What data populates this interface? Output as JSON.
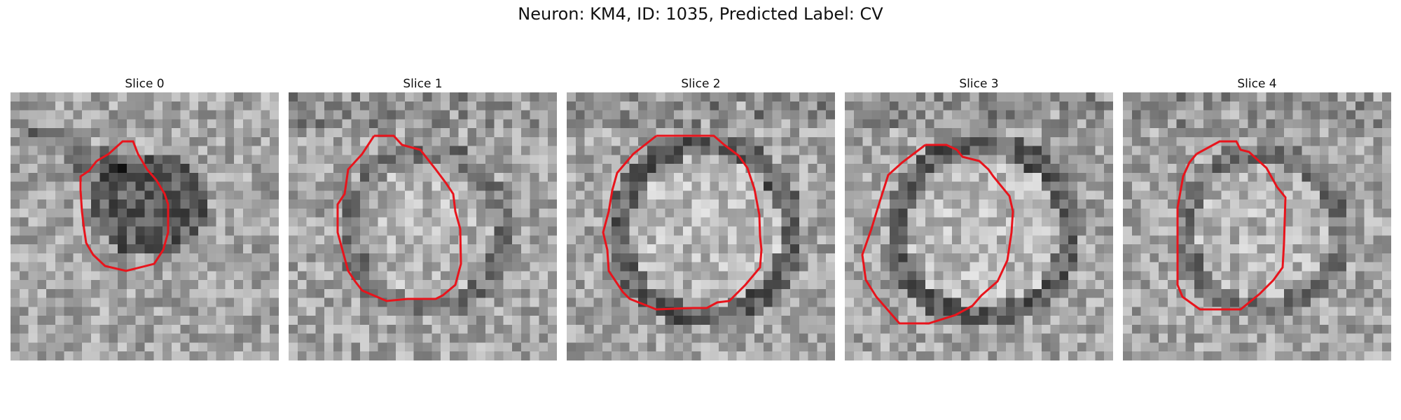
{
  "figure": {
    "title": "Neuron: KM4, ID: 1035, Predicted Label: CV"
  },
  "panels": [
    {
      "title": "Slice 0",
      "seed": 11,
      "ring": "none",
      "blob": true
    },
    {
      "title": "Slice 1",
      "seed": 23,
      "ring": "medium",
      "blob": false
    },
    {
      "title": "Slice 2",
      "seed": 37,
      "ring": "strong",
      "blob": false
    },
    {
      "title": "Slice 3",
      "seed": 41,
      "ring": "strong",
      "blob": false
    },
    {
      "title": "Slice 4",
      "seed": 59,
      "ring": "medium",
      "blob": false
    }
  ],
  "colors": {
    "contour": "#e8141c",
    "background": "#ffffff"
  }
}
